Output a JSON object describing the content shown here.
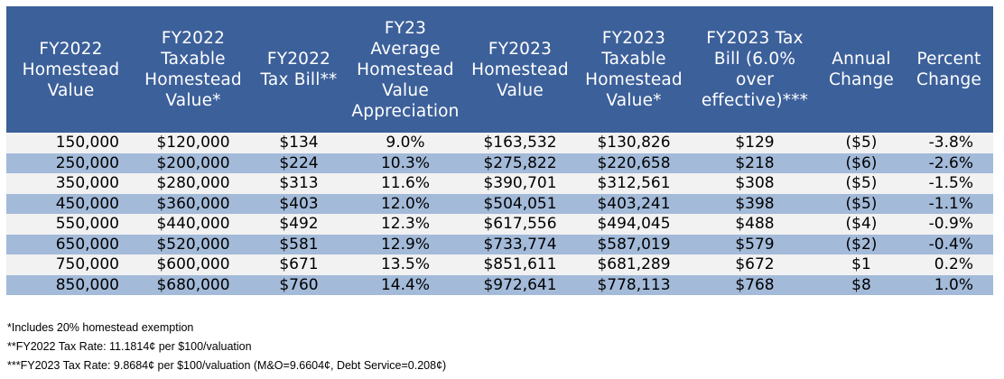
{
  "headers": [
    "FY2022\nHomestead\nValue",
    "FY2022\nTaxable\nHomestead\nValue*",
    "FY2022\nTax Bill**",
    "FY23\nAverage\nHomestead\nValue\nAppreciation",
    "FY2023\nHomestead\nValue",
    "FY2023\nTaxable\nHomestead\nValue*",
    "FY2023 Tax\nBill (6.0% over\neffective)***",
    "Annual\nChange",
    "Percent\nChange"
  ],
  "rows": [
    [
      "150,000",
      "$120,000",
      "$134",
      "9.0%",
      "$163,532",
      "$130,826",
      "$129",
      "($5)",
      "-3.8%"
    ],
    [
      "250,000",
      "$200,000",
      "$224",
      "10.3%",
      "$275,822",
      "$220,658",
      "$218",
      "($6)",
      "-2.6%"
    ],
    [
      "350,000",
      "$280,000",
      "$313",
      "11.6%",
      "$390,701",
      "$312,561",
      "$308",
      "($5)",
      "-1.5%"
    ],
    [
      "450,000",
      "$360,000",
      "$403",
      "12.0%",
      "$504,051",
      "$403,241",
      "$398",
      "($5)",
      "-1.1%"
    ],
    [
      "550,000",
      "$440,000",
      "$492",
      "12.3%",
      "$617,556",
      "$494,045",
      "$488",
      "($4)",
      "-0.9%"
    ],
    [
      "650,000",
      "$520,000",
      "$581",
      "12.9%",
      "$733,774",
      "$587,019",
      "$579",
      "($2)",
      "-0.4%"
    ],
    [
      "750,000",
      "$600,000",
      "$671",
      "13.5%",
      "$851,611",
      "$681,289",
      "$672",
      "$1",
      "0.2%"
    ],
    [
      "850,000",
      "$680,000",
      "$760",
      "14.4%",
      "$972,641",
      "$778,113",
      "$768",
      "$8",
      "1.0%"
    ]
  ],
  "notes": [
    "*Includes 20% homestead exemption",
    "**FY2022 Tax Rate: 11.1814¢ per $100/valuation",
    "***FY2023 Tax Rate: 9.8684¢ per $100/valuation (M&O=9.6604¢, Debt Service=0.208¢)"
  ],
  "colors": {
    "header_bg": "#3c609a",
    "row_light": "#f2f2f2",
    "row_dark": "#a3bad9"
  }
}
